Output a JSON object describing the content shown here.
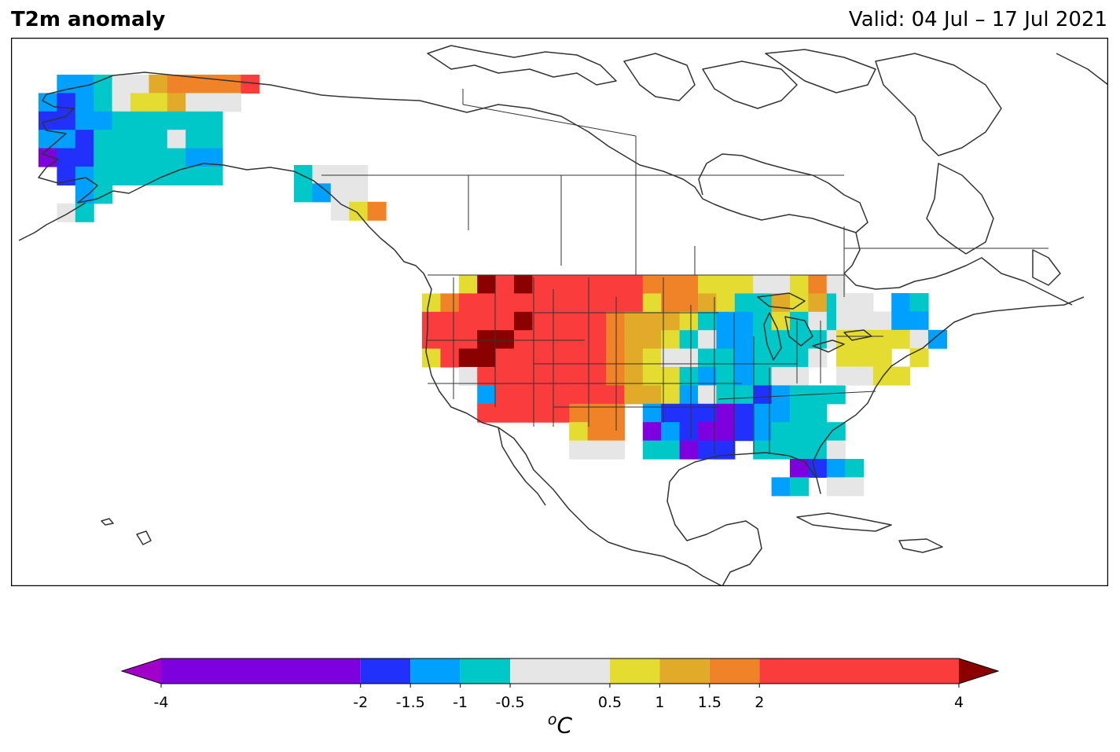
{
  "header": {
    "title": "T2m anomaly",
    "valid": "Valid: 04 Jul – 17 Jul 2021"
  },
  "colorbar": {
    "bounds": [
      "-4",
      "-2",
      "-1.5",
      "-1",
      "-0.5",
      "0.5",
      "1",
      "1.5",
      "2",
      "4"
    ],
    "colors": [
      "#7f00de",
      "#2130fb",
      "#00a0ff",
      "#00c8c8",
      "#e6e6e6",
      "#e5dc32",
      "#e1aa28",
      "#f08228",
      "#fa3c3c"
    ],
    "extend_low_color": "#a000c8",
    "extend_high_color": "#8b0000",
    "unit_base": "o",
    "unit_symbol": "C"
  },
  "map": {
    "region": "North America",
    "land_line_color": "#333333",
    "anomaly_cells_region_summary": {
      "alaska": "mostly negative (-1.5 to -0.5), warm +2 to +4 along northern coast",
      "western_us": "strong positive +2 to +4 with extreme above +4 over Idaho/Nevada",
      "central_south_us": "negative -2 to -0.5, below -2 over Texas",
      "northeast_us": "near normal to +0.5 to +1"
    }
  }
}
